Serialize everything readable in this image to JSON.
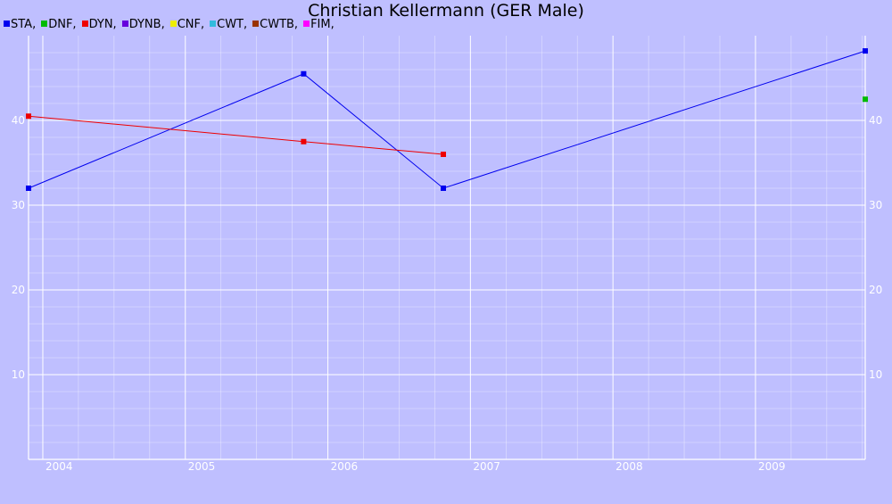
{
  "title": "Christian Kellermann (GER Male)",
  "legend": [
    {
      "label": "STA,",
      "color": "#0000ee"
    },
    {
      "label": "DNF,",
      "color": "#00bb00"
    },
    {
      "label": "DYN,",
      "color": "#ee0000"
    },
    {
      "label": "DYNB,",
      "color": "#6600dd"
    },
    {
      "label": "CNF,",
      "color": "#eeee00"
    },
    {
      "label": "CWT,",
      "color": "#33bbdd"
    },
    {
      "label": "CWTB,",
      "color": "#993300"
    },
    {
      "label": "FIM,",
      "color": "#ff00ff"
    }
  ],
  "chart_data": {
    "type": "line",
    "title": "Christian Kellermann (GER Male)",
    "xlabel": "",
    "ylabel": "",
    "xlim": [
      2003.9,
      2009.77
    ],
    "ylim": [
      0,
      50
    ],
    "x_ticks": [
      "2004",
      "2005",
      "2006",
      "2007",
      "2008",
      "2009"
    ],
    "y_ticks": [
      "10",
      "20",
      "30",
      "40"
    ],
    "grid": true,
    "legend_position": "top-left",
    "series": [
      {
        "name": "STA",
        "color": "#0000ee",
        "points": [
          [
            2003.9,
            32
          ],
          [
            2005.83,
            45.5
          ],
          [
            2006.81,
            32
          ],
          [
            2009.77,
            48.2
          ]
        ]
      },
      {
        "name": "DNF",
        "color": "#00bb00",
        "points": [
          [
            2009.77,
            42.5
          ]
        ]
      },
      {
        "name": "DYN",
        "color": "#ee0000",
        "points": [
          [
            2003.9,
            40.5
          ],
          [
            2005.83,
            37.5
          ],
          [
            2006.81,
            36
          ]
        ]
      }
    ]
  }
}
